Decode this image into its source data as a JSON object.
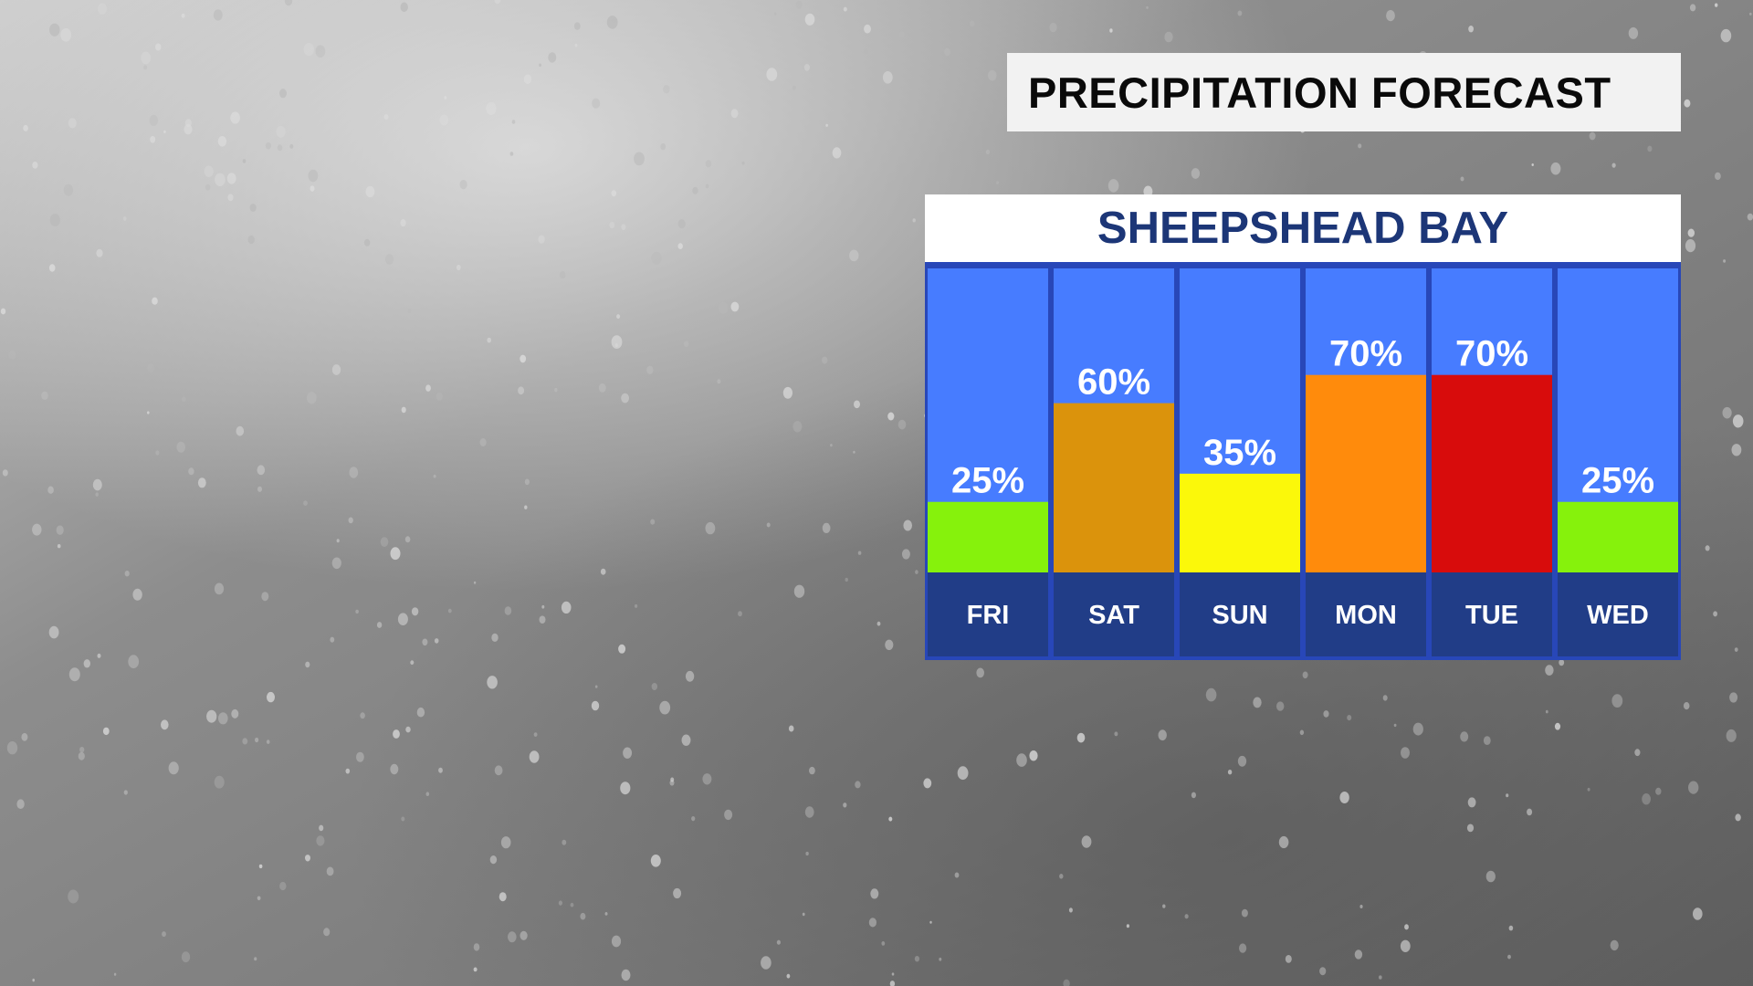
{
  "title": "PRECIPITATION FORECAST",
  "colors": {
    "title_background": "#f2f2f2",
    "title_text": "#0a0a0a",
    "location_background": "#ffffff",
    "location_text": "#1c3677",
    "column_background": "#477cff",
    "day_strip": "#213d87",
    "column_border": "#2847b8",
    "label_text": "#ffffff"
  },
  "chart_data": {
    "type": "bar",
    "title": "SHEEPSHEAD BAY",
    "categories": [
      "FRI",
      "SAT",
      "SUN",
      "MON",
      "TUE",
      "WED"
    ],
    "values": [
      25,
      60,
      35,
      70,
      70,
      25
    ],
    "value_labels": [
      "25%",
      "60%",
      "35%",
      "70%",
      "70%",
      "25%"
    ],
    "bar_colors": [
      "#86f20c",
      "#db930c",
      "#fbf80a",
      "#ff8b0c",
      "#d80c0c",
      "#86f20c"
    ],
    "ylim": [
      0,
      100
    ],
    "unit": "%",
    "grid": false,
    "legend": "none"
  }
}
